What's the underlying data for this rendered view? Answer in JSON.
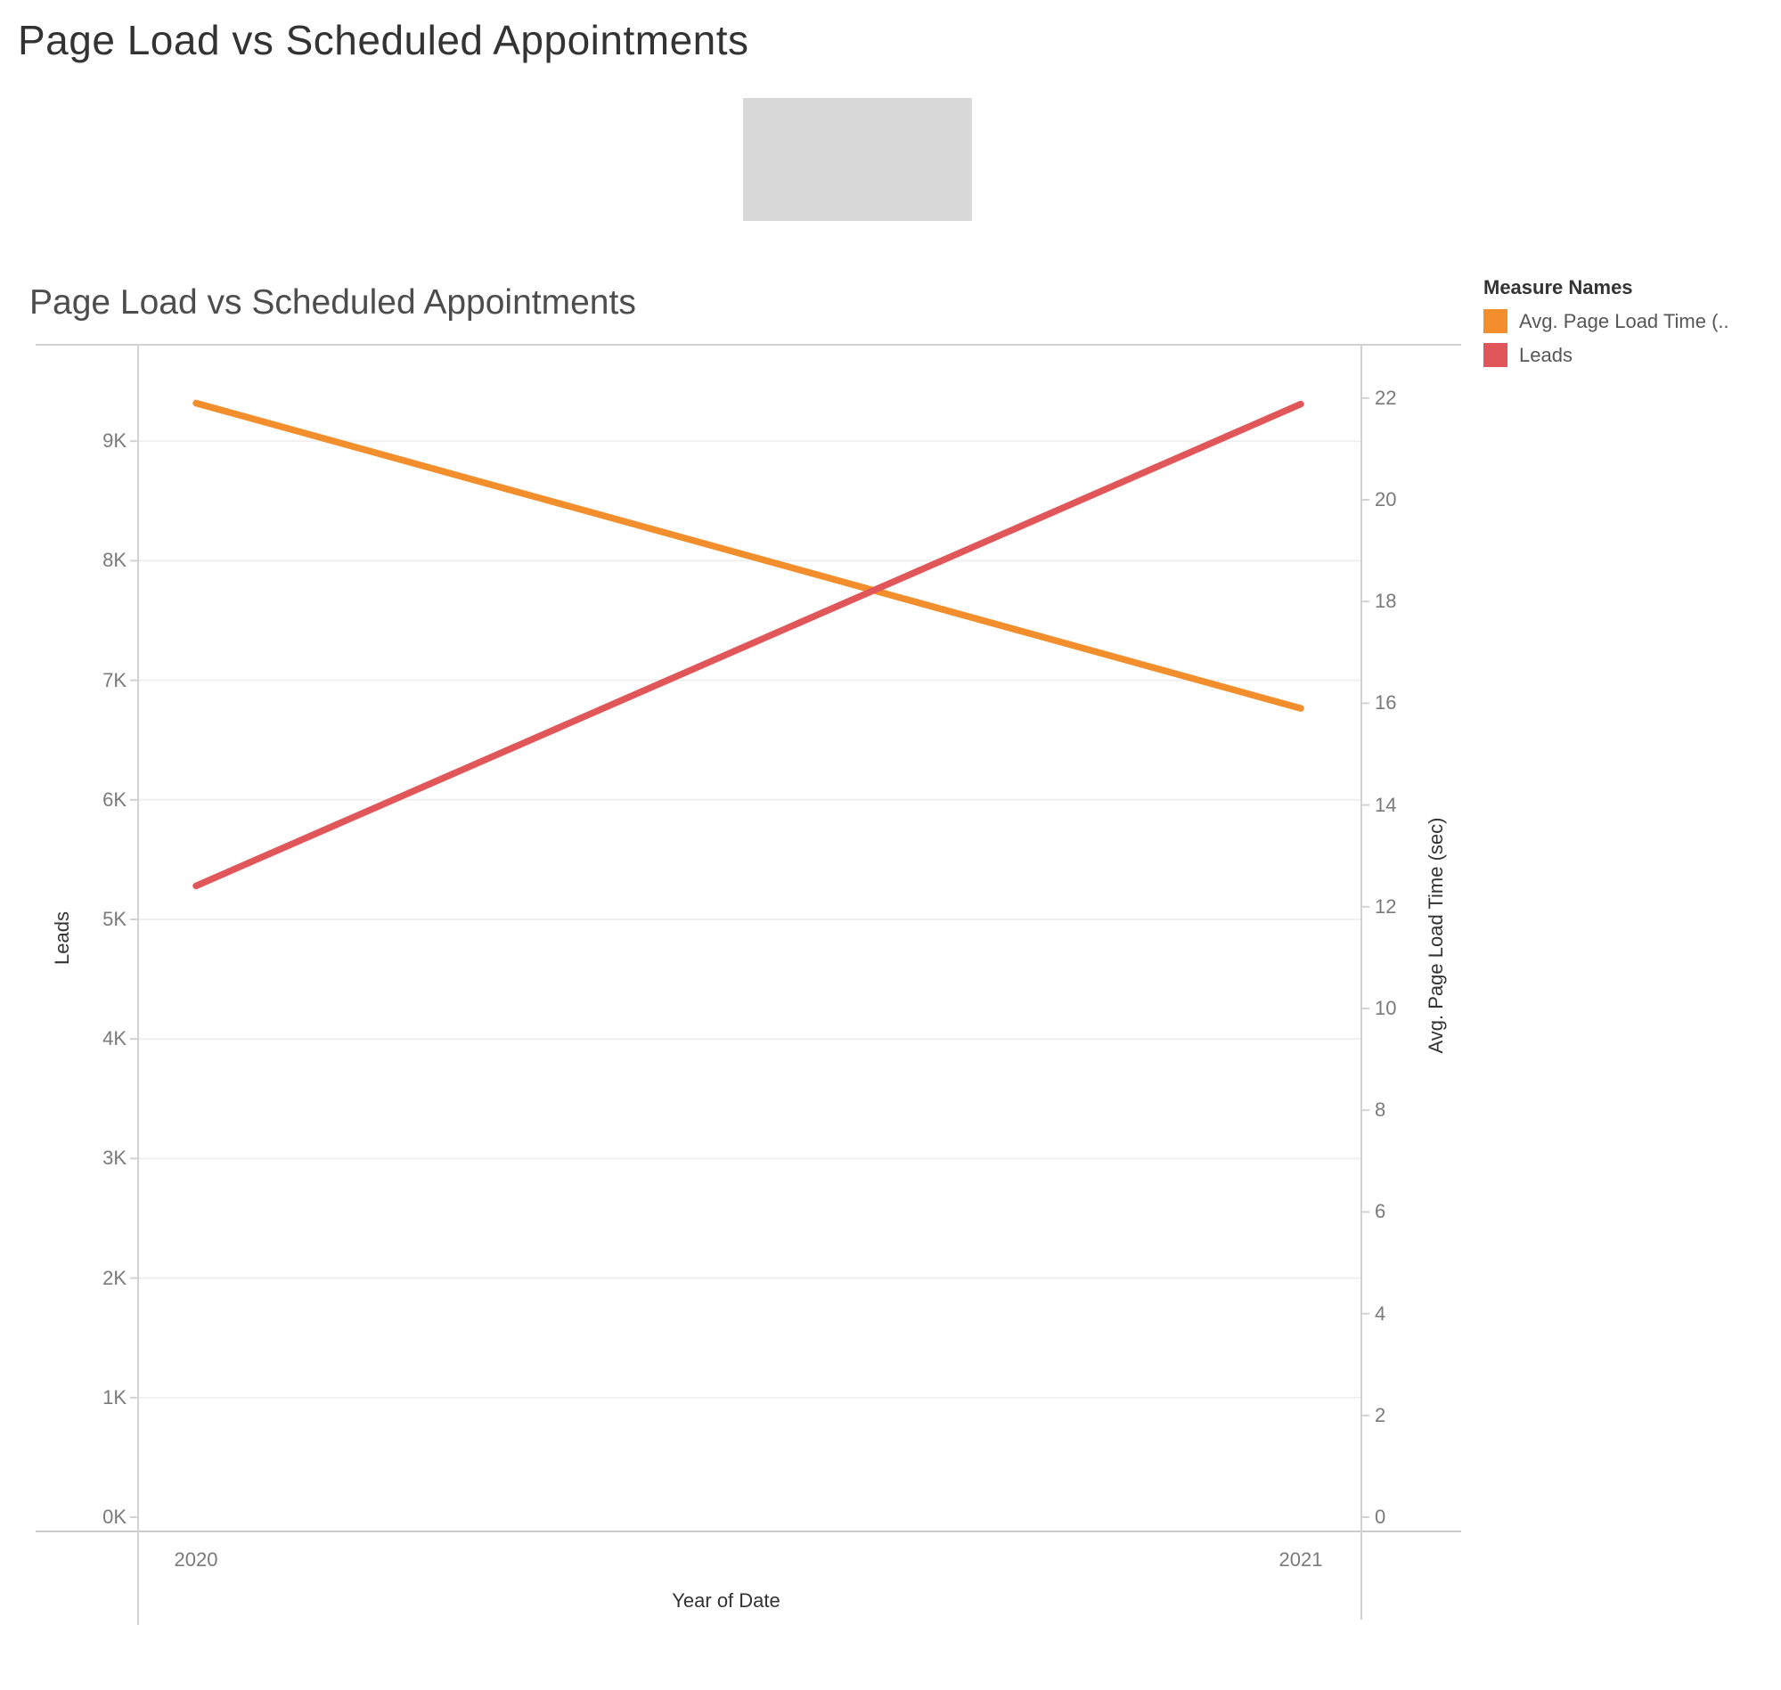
{
  "page": {
    "title": "Page Load vs Scheduled Appointments"
  },
  "chart": {
    "title": "Page Load vs Scheduled Appointments",
    "legend": {
      "title": "Measure Names",
      "items": [
        {
          "label": "Avg. Page Load Time (..",
          "color": "#f28e2b"
        },
        {
          "label": "Leads",
          "color": "#e15759"
        }
      ]
    },
    "x_axis": {
      "title": "Year of Date",
      "labels": [
        "2020",
        "2021"
      ]
    },
    "left_axis": {
      "title": "Leads",
      "ticks": [
        {
          "label": "0K",
          "value": 0
        },
        {
          "label": "1K",
          "value": 1000
        },
        {
          "label": "2K",
          "value": 2000
        },
        {
          "label": "3K",
          "value": 3000
        },
        {
          "label": "4K",
          "value": 4000
        },
        {
          "label": "5K",
          "value": 5000
        },
        {
          "label": "6K",
          "value": 6000
        },
        {
          "label": "7K",
          "value": 7000
        },
        {
          "label": "8K",
          "value": 8000
        },
        {
          "label": "9K",
          "value": 9000
        }
      ]
    },
    "right_axis": {
      "title": "Avg. Page Load Time (sec)",
      "ticks": [
        {
          "label": "0",
          "value": 0
        },
        {
          "label": "2",
          "value": 2
        },
        {
          "label": "4",
          "value": 4
        },
        {
          "label": "6",
          "value": 6
        },
        {
          "label": "8",
          "value": 8
        },
        {
          "label": "10",
          "value": 10
        },
        {
          "label": "12",
          "value": 12
        },
        {
          "label": "14",
          "value": 14
        },
        {
          "label": "16",
          "value": 16
        },
        {
          "label": "18",
          "value": 18
        },
        {
          "label": "20",
          "value": 20
        },
        {
          "label": "22",
          "value": 22
        }
      ]
    }
  },
  "chart_data": {
    "type": "line",
    "title": "Page Load vs Scheduled Appointments",
    "x": [
      2020,
      2021
    ],
    "series": [
      {
        "name": "Avg. Page Load Time (sec)",
        "axis": "right",
        "color": "#f28e2b",
        "values": [
          21.9,
          15.9
        ]
      },
      {
        "name": "Leads",
        "axis": "left",
        "color": "#e15759",
        "values": [
          5280,
          9310
        ]
      }
    ],
    "xlabel": "Year of Date",
    "ylabel_left": "Leads",
    "ylabel_right": "Avg. Page Load Time (sec)",
    "ylim_left": [
      0,
      9800
    ],
    "ylim_right": [
      0,
      23
    ],
    "grid": "horizontal-light",
    "legend_position": "top-right"
  }
}
